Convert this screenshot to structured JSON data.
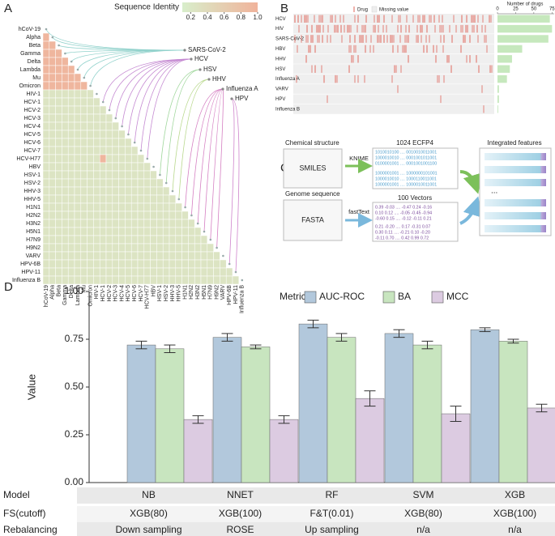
{
  "panels": [
    "A",
    "B",
    "C",
    "D"
  ],
  "chart_data": [
    {
      "type": "heatmap",
      "title": "Sequence Identity",
      "labels": [
        "hCoV-19",
        "Alpha",
        "Beta",
        "Gamma",
        "Delta",
        "Lambda",
        "Mu",
        "Omicron",
        "HIV-1",
        "HCV-1",
        "HCV-2",
        "HCV-3",
        "HCV-4",
        "HCV-5",
        "HCV-6",
        "HCV-7",
        "HCV-H77",
        "HBV",
        "HSV-1",
        "HSV-2",
        "HHV-3",
        "HHV-5",
        "H1N1",
        "H2N2",
        "H3N2",
        "H5N1",
        "H7N9",
        "H9N2",
        "VARV",
        "HPV-6B",
        "HPV-11",
        "Influenza B"
      ],
      "values": [
        [],
        [
          0.95
        ],
        [
          0.95,
          0.95
        ],
        [
          0.95,
          0.95,
          0.95
        ],
        [
          0.95,
          0.95,
          0.95,
          0.95
        ],
        [
          0.95,
          0.95,
          0.95,
          0.95,
          0.95
        ],
        [
          0.95,
          0.95,
          0.95,
          0.95,
          0.95,
          0.95
        ],
        [
          0.95,
          0.95,
          0.95,
          0.95,
          0.95,
          0.95,
          0.95
        ],
        [
          0.25,
          0.25,
          0.25,
          0.25,
          0.25,
          0.25,
          0.25,
          0.25
        ],
        [
          0.25,
          0.25,
          0.25,
          0.25,
          0.25,
          0.25,
          0.25,
          0.25,
          0.25
        ],
        [
          0.25,
          0.25,
          0.25,
          0.25,
          0.25,
          0.25,
          0.25,
          0.25,
          0.25,
          0.25
        ],
        [
          0.25,
          0.25,
          0.25,
          0.25,
          0.25,
          0.25,
          0.25,
          0.25,
          0.25,
          0.25,
          0.25
        ],
        [
          0.25,
          0.25,
          0.25,
          0.25,
          0.25,
          0.25,
          0.25,
          0.25,
          0.25,
          0.25,
          0.25,
          0.25
        ],
        [
          0.25,
          0.25,
          0.25,
          0.25,
          0.25,
          0.25,
          0.25,
          0.25,
          0.25,
          0.25,
          0.25,
          0.25,
          0.25
        ],
        [
          0.25,
          0.25,
          0.25,
          0.25,
          0.25,
          0.25,
          0.25,
          0.25,
          0.25,
          0.25,
          0.25,
          0.25,
          0.25,
          0.25
        ],
        [
          0.25,
          0.25,
          0.25,
          0.25,
          0.25,
          0.25,
          0.25,
          0.25,
          0.25,
          0.25,
          0.25,
          0.25,
          0.25,
          0.25,
          0.25
        ],
        [
          0.25,
          0.25,
          0.25,
          0.25,
          0.25,
          0.25,
          0.25,
          0.25,
          0.25,
          0.95,
          0.25,
          0.25,
          0.25,
          0.25,
          0.25,
          0.25
        ],
        [
          0.25,
          0.25,
          0.25,
          0.25,
          0.25,
          0.25,
          0.25,
          0.25,
          0.25,
          0.25,
          0.25,
          0.25,
          0.25,
          0.25,
          0.25,
          0.25,
          0.25
        ],
        [
          0.25,
          0.25,
          0.25,
          0.25,
          0.25,
          0.25,
          0.25,
          0.25,
          0.25,
          0.25,
          0.25,
          0.25,
          0.25,
          0.25,
          0.25,
          0.25,
          0.25,
          0.25
        ],
        [
          0.25,
          0.25,
          0.25,
          0.25,
          0.25,
          0.25,
          0.25,
          0.25,
          0.25,
          0.25,
          0.25,
          0.25,
          0.25,
          0.25,
          0.25,
          0.25,
          0.25,
          0.25,
          0.25
        ],
        [
          0.25,
          0.25,
          0.25,
          0.25,
          0.25,
          0.25,
          0.25,
          0.25,
          0.25,
          0.25,
          0.25,
          0.25,
          0.25,
          0.25,
          0.25,
          0.25,
          0.25,
          0.25,
          0.25,
          0.25
        ],
        [
          0.25,
          0.25,
          0.25,
          0.25,
          0.25,
          0.25,
          0.25,
          0.25,
          0.25,
          0.25,
          0.25,
          0.25,
          0.25,
          0.25,
          0.25,
          0.25,
          0.25,
          0.25,
          0.25,
          0.25,
          0.25
        ],
        [
          0.25,
          0.25,
          0.25,
          0.25,
          0.25,
          0.25,
          0.25,
          0.25,
          0.25,
          0.25,
          0.25,
          0.25,
          0.25,
          0.25,
          0.25,
          0.25,
          0.25,
          0.25,
          0.25,
          0.25,
          0.25,
          0.25
        ],
        [
          0.25,
          0.25,
          0.25,
          0.25,
          0.25,
          0.25,
          0.25,
          0.25,
          0.25,
          0.25,
          0.25,
          0.25,
          0.25,
          0.25,
          0.25,
          0.25,
          0.25,
          0.25,
          0.25,
          0.25,
          0.25,
          0.25,
          0.25
        ],
        [
          0.25,
          0.25,
          0.25,
          0.25,
          0.25,
          0.25,
          0.25,
          0.25,
          0.25,
          0.25,
          0.25,
          0.25,
          0.25,
          0.25,
          0.25,
          0.25,
          0.25,
          0.25,
          0.25,
          0.25,
          0.25,
          0.25,
          0.25,
          0.25
        ],
        [
          0.25,
          0.25,
          0.25,
          0.25,
          0.25,
          0.25,
          0.25,
          0.25,
          0.25,
          0.25,
          0.25,
          0.25,
          0.25,
          0.25,
          0.25,
          0.25,
          0.25,
          0.25,
          0.25,
          0.25,
          0.25,
          0.25,
          0.25,
          0.25,
          0.25
        ],
        [
          0.25,
          0.25,
          0.25,
          0.25,
          0.25,
          0.25,
          0.25,
          0.25,
          0.25,
          0.25,
          0.25,
          0.25,
          0.25,
          0.25,
          0.25,
          0.25,
          0.25,
          0.25,
          0.25,
          0.25,
          0.25,
          0.25,
          0.25,
          0.25,
          0.25,
          0.25
        ],
        [
          0.25,
          0.25,
          0.25,
          0.25,
          0.25,
          0.25,
          0.25,
          0.25,
          0.25,
          0.25,
          0.25,
          0.25,
          0.25,
          0.25,
          0.25,
          0.25,
          0.25,
          0.25,
          0.25,
          0.25,
          0.25,
          0.25,
          0.25,
          0.25,
          0.25,
          0.25,
          0.25
        ],
        [
          0.25,
          0.25,
          0.25,
          0.25,
          0.25,
          0.25,
          0.25,
          0.25,
          0.25,
          0.25,
          0.25,
          0.25,
          0.25,
          0.25,
          0.25,
          0.25,
          0.25,
          0.25,
          0.25,
          0.25,
          0.25,
          0.25,
          0.25,
          0.25,
          0.25,
          0.25,
          0.25,
          0.25
        ],
        [
          0.25,
          0.25,
          0.25,
          0.25,
          0.25,
          0.25,
          0.25,
          0.25,
          0.25,
          0.25,
          0.25,
          0.25,
          0.25,
          0.25,
          0.25,
          0.25,
          0.25,
          0.25,
          0.25,
          0.25,
          0.25,
          0.25,
          0.25,
          0.25,
          0.25,
          0.25,
          0.25,
          0.25,
          0.25
        ],
        [
          0.25,
          0.25,
          0.25,
          0.25,
          0.25,
          0.25,
          0.25,
          0.25,
          0.25,
          0.25,
          0.25,
          0.25,
          0.25,
          0.25,
          0.25,
          0.25,
          0.25,
          0.25,
          0.25,
          0.25,
          0.25,
          0.25,
          0.25,
          0.25,
          0.25,
          0.25,
          0.25,
          0.25,
          0.25,
          0.25
        ],
        [
          0.25,
          0.25,
          0.25,
          0.25,
          0.25,
          0.25,
          0.25,
          0.25,
          0.25,
          0.25,
          0.25,
          0.25,
          0.25,
          0.25,
          0.25,
          0.25,
          0.25,
          0.25,
          0.25,
          0.25,
          0.25,
          0.25,
          0.25,
          0.25,
          0.25,
          0.25,
          0.25,
          0.25,
          0.25,
          0.25,
          0.25
        ]
      ],
      "clim": [
        0.1,
        1.0
      ],
      "cticks": [
        0.2,
        0.4,
        0.6,
        0.8,
        {
          "value": 1.0,
          "label": "1.0"
        }
      ],
      "colors": [
        "#d8eecb",
        "#f0b39b"
      ],
      "groups": [
        {
          "name": "SARS-CoV-2",
          "color": "#92d2cc",
          "members": [
            "hCoV-19",
            "Alpha",
            "Beta",
            "Gamma",
            "Delta",
            "Lambda",
            "Mu",
            "Omicron"
          ]
        },
        {
          "name": "HCV",
          "color": "#c58ad2",
          "members": [
            "HCV-1",
            "HCV-2",
            "HCV-3",
            "HCV-4",
            "HCV-5",
            "HCV-6",
            "HCV-7",
            "HCV-H77"
          ]
        },
        {
          "name": "HSV",
          "color": "#9ed69a",
          "members": [
            "HSV-1",
            "HSV-2"
          ]
        },
        {
          "name": "HHV",
          "color": "#b8d88c",
          "members": [
            "HHV-3",
            "HHV-5"
          ]
        },
        {
          "name": "Influenza A",
          "color": "#d57fc2",
          "members": [
            "H1N1",
            "H2N2",
            "H3N2",
            "H5N1",
            "H7N9",
            "H9N2"
          ]
        },
        {
          "name": "HPV",
          "color": "#cf84cc",
          "members": [
            "HPV-6B",
            "HPV-11"
          ]
        }
      ]
    },
    {
      "type": "barh",
      "title": "Number of drugs",
      "legend": [
        "Drug",
        "Missing value"
      ],
      "categories": [
        "HCV",
        "HIV",
        "SARS-CoV-2",
        "HBV",
        "HHV",
        "HSV",
        "Influenza A",
        "VARV",
        "HPV",
        "Influenza B"
      ],
      "values": [
        72,
        75,
        70,
        34,
        20,
        17,
        13,
        2,
        2,
        1
      ],
      "color": "#c6e8bd",
      "mark_color": "#e0665a",
      "xlim": [
        0,
        78
      ],
      "xticks": [
        0,
        25,
        50,
        75
      ]
    },
    {
      "type": "bar",
      "ylabel": "Value",
      "legend_title": "Metric",
      "categories": [
        "NB",
        "NNET",
        "RF",
        "SVM",
        "XGB"
      ],
      "series": [
        {
          "name": "AUC-ROC",
          "color": "#b2c8dc",
          "values": [
            0.72,
            0.76,
            0.83,
            0.78,
            0.8
          ],
          "errors": [
            0.02,
            0.02,
            0.02,
            0.02,
            0.01
          ]
        },
        {
          "name": "BA",
          "color": "#c8e5bf",
          "values": [
            0.7,
            0.71,
            0.76,
            0.72,
            0.74
          ],
          "errors": [
            0.02,
            0.01,
            0.02,
            0.02,
            0.01
          ]
        },
        {
          "name": "MCC",
          "color": "#dccbe1",
          "values": [
            0.33,
            0.33,
            0.44,
            0.36,
            0.39
          ],
          "errors": [
            0.02,
            0.02,
            0.04,
            0.04,
            0.02
          ]
        }
      ],
      "ylim": [
        0,
        1
      ],
      "yticks": [
        {
          "value": 0,
          "label": "0.00"
        },
        {
          "value": 0.25,
          "label": "0.25"
        },
        {
          "value": 0.5,
          "label": "0.50"
        },
        {
          "value": 0.75,
          "label": "0.75"
        },
        {
          "value": 1,
          "label": "1.00"
        }
      ],
      "table": {
        "row_labels": [
          "Model",
          "FS(cutoff)",
          "Rebalancing"
        ],
        "fs": [
          "XGB(80)",
          "XGB(100)",
          "F&T(0.01)",
          "XGB(80)",
          "XGB(100)"
        ],
        "rebalancing": [
          "Down sampling",
          "ROSE",
          "Up sampling",
          "n/a",
          "n/a"
        ]
      }
    }
  ],
  "diagram": {
    "chem_title": "Chemical structure",
    "smiles": "SMILES",
    "knime": "KNIME",
    "ecfp": "1024 ECFP4",
    "bits": [
      "1010010100 .... 0010010011001",
      "1000010010 .... 0001001011001",
      "0100001001 .... 0001001001100",
      "1000001001 .... 1000000101001",
      "1000010010 .... 1000110011001",
      "1000001001 .... 1000010011001"
    ],
    "genome_title": "Genome sequence",
    "fasta": "FASTA",
    "fasttext": "fastText",
    "vectors": "100 Vectors",
    "vector_rows": [
      "0.39  -0.03  ....  -0.47  0.24  -0.16",
      "0.10  0.12   ....  -0.05  -0.45  -0.94",
      "-0.60  0.15  ....  -0.12  -0.11  0.21",
      "0.21  -0.20  ....  0.17  -0.31  0.07",
      "0.30  0.11   ....  -0.21  0.10  -0.20",
      "-0.11  0.70  ....  0.42  0.99  0.72"
    ],
    "integrated": "Integrated features",
    "ellipsis": "..."
  }
}
